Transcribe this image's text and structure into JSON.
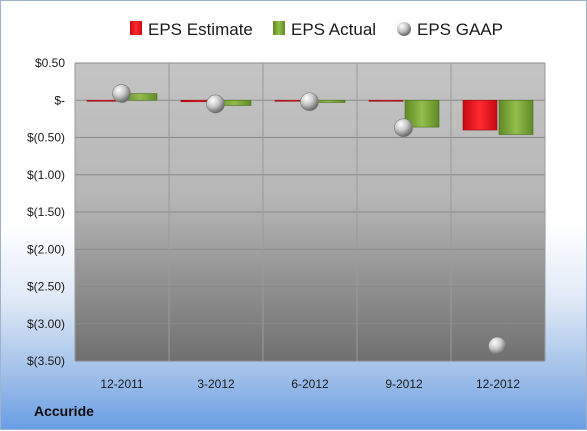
{
  "company_label": "Accuride",
  "chart_data": {
    "type": "bar",
    "title": "",
    "xlabel": "",
    "ylabel": "",
    "categories": [
      "12-2011",
      "3-2012",
      "6-2012",
      "9-2012",
      "12-2012"
    ],
    "series": [
      {
        "name": "EPS Estimate",
        "kind": "bar",
        "color": "#e8141e",
        "values": [
          -0.01,
          -0.02,
          -0.01,
          0.0,
          -0.4
        ]
      },
      {
        "name": "EPS Actual",
        "kind": "bar",
        "color": "#7aa33a",
        "values": [
          0.09,
          -0.07,
          -0.03,
          -0.36,
          -0.46
        ]
      },
      {
        "name": "EPS GAAP",
        "kind": "marker",
        "color": "#b8b8b8",
        "values": [
          0.09,
          -0.05,
          -0.02,
          -0.37,
          -3.3
        ]
      }
    ],
    "ylim": [
      -3.5,
      0.5
    ],
    "yticks": [
      0.5,
      0,
      -0.5,
      -1.0,
      -1.5,
      -2.0,
      -2.5,
      -3.0,
      -3.5
    ],
    "ytick_labels": [
      "$0.50",
      "$-",
      "$(0.50)",
      "$(1.00)",
      "$(1.50)",
      "$(2.00)",
      "$(2.50)",
      "$(3.00)",
      "$(3.50)"
    ],
    "grid": true,
    "legend_position": "top"
  }
}
